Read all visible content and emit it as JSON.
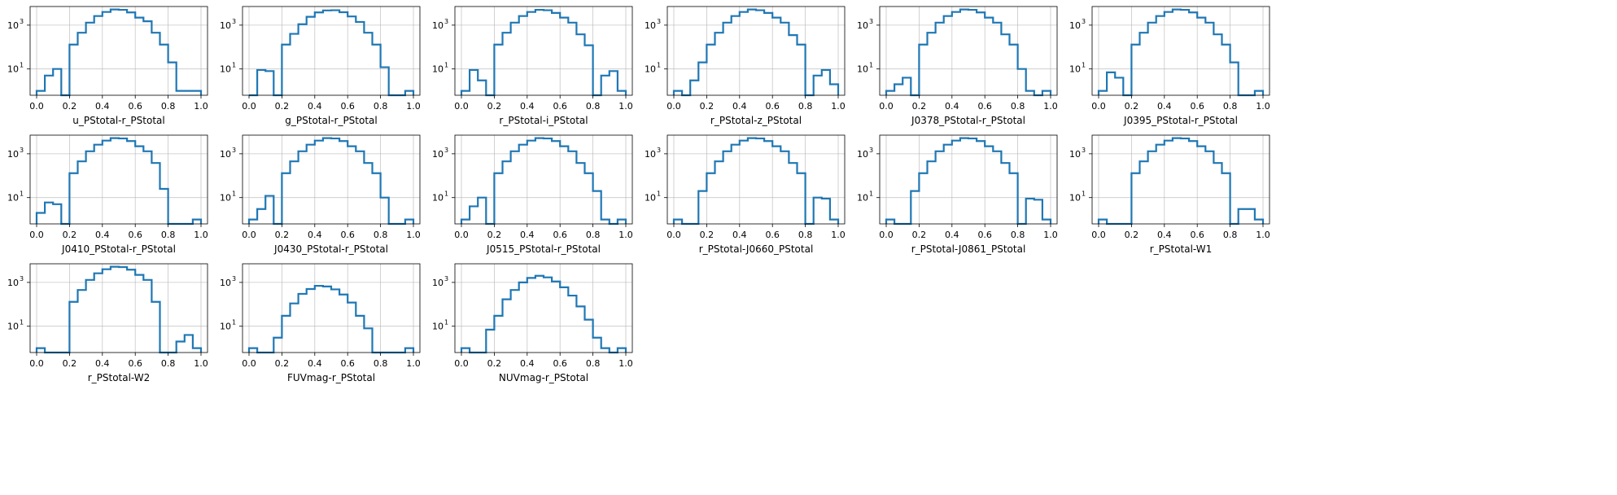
{
  "figure": {
    "layout": "3x6 grid of histograms, 15 panels shown",
    "line_color": "#1f77b4",
    "grid": true
  },
  "chart_data": [
    {
      "type": "histogram",
      "xlabel": "u_PStotal-r_PStotal",
      "yscale": "log",
      "xlim": [
        0,
        1
      ],
      "yticks": [
        "10^1",
        "10^3"
      ],
      "xticks": [
        "0.0",
        "0.2",
        "0.4",
        "0.6",
        "0.8",
        "1.0"
      ],
      "bin_edges": [
        0,
        0.05,
        0.1,
        0.15,
        0.2,
        0.25,
        0.3,
        0.35,
        0.4,
        0.45,
        0.5,
        0.55,
        0.6,
        0.65,
        0.7,
        0.75,
        0.8,
        0.85,
        0.9,
        0.95,
        1.0
      ],
      "counts": [
        1,
        5,
        10,
        0,
        130,
        450,
        1300,
        2600,
        4000,
        5200,
        5000,
        3800,
        2200,
        1500,
        450,
        130,
        20,
        1,
        1,
        1
      ]
    },
    {
      "type": "histogram",
      "xlabel": "g_PStotal-r_PStotal",
      "yscale": "log",
      "xlim": [
        0,
        1
      ],
      "yticks": [
        "10^1",
        "10^3"
      ],
      "xticks": [
        "0.0",
        "0.2",
        "0.4",
        "0.6",
        "0.8",
        "1.0"
      ],
      "bin_edges": [
        0,
        0.05,
        0.1,
        0.15,
        0.2,
        0.25,
        0.3,
        0.35,
        0.4,
        0.45,
        0.5,
        0.55,
        0.6,
        0.65,
        0.7,
        0.75,
        0.8,
        0.85,
        0.9,
        0.95,
        1.0
      ],
      "counts": [
        0,
        9,
        8,
        0,
        130,
        400,
        1100,
        2400,
        3800,
        4700,
        4800,
        3900,
        2500,
        1400,
        450,
        130,
        12,
        0,
        0,
        1
      ]
    },
    {
      "type": "histogram",
      "xlabel": "r_PStotal-i_PStotal",
      "yscale": "log",
      "xlim": [
        0,
        1
      ],
      "yticks": [
        "10^1",
        "10^3"
      ],
      "xticks": [
        "0.0",
        "0.2",
        "0.4",
        "0.6",
        "0.8",
        "1.0"
      ],
      "bin_edges": [
        0,
        0.05,
        0.1,
        0.15,
        0.2,
        0.25,
        0.3,
        0.35,
        0.4,
        0.45,
        0.5,
        0.55,
        0.6,
        0.65,
        0.7,
        0.75,
        0.8,
        0.85,
        0.9,
        0.95,
        1.0
      ],
      "counts": [
        1,
        9,
        3,
        0,
        130,
        450,
        1300,
        2600,
        4000,
        5000,
        4800,
        3600,
        2200,
        1300,
        380,
        120,
        0,
        5,
        8,
        1
      ]
    },
    {
      "type": "histogram",
      "xlabel": "r_PStotal-z_PStotal",
      "yscale": "log",
      "xlim": [
        0,
        1
      ],
      "yticks": [
        "10^1",
        "10^3"
      ],
      "xticks": [
        "0.0",
        "0.2",
        "0.4",
        "0.6",
        "0.8",
        "1.0"
      ],
      "bin_edges": [
        0,
        0.05,
        0.1,
        0.15,
        0.2,
        0.25,
        0.3,
        0.35,
        0.4,
        0.45,
        0.5,
        0.55,
        0.6,
        0.65,
        0.7,
        0.75,
        0.8,
        0.85,
        0.9,
        0.95,
        1.0
      ],
      "counts": [
        1,
        0,
        3,
        20,
        130,
        450,
        1300,
        2600,
        4000,
        5200,
        4800,
        3600,
        2200,
        1300,
        350,
        130,
        0,
        5,
        9,
        2
      ]
    },
    {
      "type": "histogram",
      "xlabel": "J0378_PStotal-r_PStotal",
      "yscale": "log",
      "xlim": [
        0,
        1
      ],
      "yticks": [
        "10^1",
        "10^3"
      ],
      "xticks": [
        "0.0",
        "0.2",
        "0.4",
        "0.6",
        "0.8",
        "1.0"
      ],
      "bin_edges": [
        0,
        0.05,
        0.1,
        0.15,
        0.2,
        0.25,
        0.3,
        0.35,
        0.4,
        0.45,
        0.5,
        0.55,
        0.6,
        0.65,
        0.7,
        0.75,
        0.8,
        0.85,
        0.9,
        0.95,
        1.0
      ],
      "counts": [
        1,
        2,
        4,
        0,
        130,
        450,
        1300,
        2600,
        4000,
        5200,
        5000,
        3800,
        2200,
        1300,
        380,
        130,
        10,
        1,
        0,
        1
      ]
    },
    {
      "type": "histogram",
      "xlabel": "J0395_PStotal-r_PStotal",
      "yscale": "log",
      "xlim": [
        0,
        1
      ],
      "yticks": [
        "10^1",
        "10^3"
      ],
      "xticks": [
        "0.0",
        "0.2",
        "0.4",
        "0.6",
        "0.8",
        "1.0"
      ],
      "bin_edges": [
        0,
        0.05,
        0.1,
        0.15,
        0.2,
        0.25,
        0.3,
        0.35,
        0.4,
        0.45,
        0.5,
        0.55,
        0.6,
        0.65,
        0.7,
        0.75,
        0.8,
        0.85,
        0.9,
        0.95,
        1.0
      ],
      "counts": [
        1,
        7,
        4,
        0,
        130,
        450,
        1300,
        2600,
        4000,
        5200,
        5000,
        3800,
        2200,
        1300,
        380,
        130,
        20,
        0,
        0,
        1
      ]
    },
    {
      "type": "histogram",
      "xlabel": "J0410_PStotal-r_PStotal",
      "yscale": "log",
      "xlim": [
        0,
        1
      ],
      "yticks": [
        "10^1",
        "10^3"
      ],
      "xticks": [
        "0.0",
        "0.2",
        "0.4",
        "0.6",
        "0.8",
        "1.0"
      ],
      "bin_edges": [
        0,
        0.05,
        0.1,
        0.15,
        0.2,
        0.25,
        0.3,
        0.35,
        0.4,
        0.45,
        0.5,
        0.55,
        0.6,
        0.65,
        0.7,
        0.75,
        0.8,
        0.85,
        0.9,
        0.95,
        1.0
      ],
      "counts": [
        2,
        6,
        5,
        0,
        130,
        450,
        1300,
        2600,
        4000,
        5200,
        5000,
        3800,
        2200,
        1300,
        380,
        25,
        0,
        0,
        0,
        1
      ]
    },
    {
      "type": "histogram",
      "xlabel": "J0430_PStotal-r_PStotal",
      "yscale": "log",
      "xlim": [
        0,
        1
      ],
      "yticks": [
        "10^1",
        "10^3"
      ],
      "xticks": [
        "0.0",
        "0.2",
        "0.4",
        "0.6",
        "0.8",
        "1.0"
      ],
      "bin_edges": [
        0,
        0.05,
        0.1,
        0.15,
        0.2,
        0.25,
        0.3,
        0.35,
        0.4,
        0.45,
        0.5,
        0.55,
        0.6,
        0.65,
        0.7,
        0.75,
        0.8,
        0.85,
        0.9,
        0.95,
        1.0
      ],
      "counts": [
        1,
        3,
        12,
        0,
        130,
        450,
        1300,
        2600,
        4000,
        5200,
        5000,
        3800,
        2200,
        1300,
        380,
        130,
        10,
        0,
        0,
        1
      ]
    },
    {
      "type": "histogram",
      "xlabel": "J0515_PStotal-r_PStotal",
      "yscale": "log",
      "xlim": [
        0,
        1
      ],
      "yticks": [
        "10^1",
        "10^3"
      ],
      "xticks": [
        "0.0",
        "0.2",
        "0.4",
        "0.6",
        "0.8",
        "1.0"
      ],
      "bin_edges": [
        0,
        0.05,
        0.1,
        0.15,
        0.2,
        0.25,
        0.3,
        0.35,
        0.4,
        0.45,
        0.5,
        0.55,
        0.6,
        0.65,
        0.7,
        0.75,
        0.8,
        0.85,
        0.9,
        0.95,
        1.0
      ],
      "counts": [
        1,
        4,
        10,
        0,
        130,
        450,
        1300,
        2600,
        4000,
        5200,
        5000,
        3800,
        2200,
        1300,
        380,
        130,
        20,
        1,
        0,
        1
      ]
    },
    {
      "type": "histogram",
      "xlabel": "r_PStotal-J0660_PStotal",
      "yscale": "log",
      "xlim": [
        0,
        1
      ],
      "yticks": [
        "10^1",
        "10^3"
      ],
      "xticks": [
        "0.0",
        "0.2",
        "0.4",
        "0.6",
        "0.8",
        "1.0"
      ],
      "bin_edges": [
        0,
        0.05,
        0.1,
        0.15,
        0.2,
        0.25,
        0.3,
        0.35,
        0.4,
        0.45,
        0.5,
        0.55,
        0.6,
        0.65,
        0.7,
        0.75,
        0.8,
        0.85,
        0.9,
        0.95,
        1.0
      ],
      "counts": [
        1,
        0,
        0,
        20,
        130,
        450,
        1300,
        2600,
        4000,
        5200,
        5000,
        3800,
        2200,
        1300,
        380,
        130,
        0,
        10,
        9,
        1
      ]
    },
    {
      "type": "histogram",
      "xlabel": "r_PStotal-J0861_PStotal",
      "yscale": "log",
      "xlim": [
        0,
        1
      ],
      "yticks": [
        "10^1",
        "10^3"
      ],
      "xticks": [
        "0.0",
        "0.2",
        "0.4",
        "0.6",
        "0.8",
        "1.0"
      ],
      "bin_edges": [
        0,
        0.05,
        0.1,
        0.15,
        0.2,
        0.25,
        0.3,
        0.35,
        0.4,
        0.45,
        0.5,
        0.55,
        0.6,
        0.65,
        0.7,
        0.75,
        0.8,
        0.85,
        0.9,
        0.95,
        1.0
      ],
      "counts": [
        1,
        0,
        0,
        20,
        130,
        450,
        1300,
        2600,
        4000,
        5200,
        5000,
        3800,
        2200,
        1300,
        380,
        130,
        0,
        9,
        8,
        1
      ]
    },
    {
      "type": "histogram",
      "xlabel": "r_PStotal-W1",
      "yscale": "log",
      "xlim": [
        0,
        1
      ],
      "yticks": [
        "10^1",
        "10^3"
      ],
      "xticks": [
        "0.0",
        "0.2",
        "0.4",
        "0.6",
        "0.8",
        "1.0"
      ],
      "bin_edges": [
        0,
        0.05,
        0.1,
        0.15,
        0.2,
        0.25,
        0.3,
        0.35,
        0.4,
        0.45,
        0.5,
        0.55,
        0.6,
        0.65,
        0.7,
        0.75,
        0.8,
        0.85,
        0.9,
        0.95,
        1.0
      ],
      "counts": [
        1,
        0,
        0,
        0,
        130,
        450,
        1300,
        2600,
        4000,
        5200,
        5000,
        3800,
        2200,
        1300,
        380,
        130,
        0,
        3,
        3,
        1
      ]
    },
    {
      "type": "histogram",
      "xlabel": "r_PStotal-W2",
      "yscale": "log",
      "xlim": [
        0,
        1
      ],
      "yticks": [
        "10^1",
        "10^3"
      ],
      "xticks": [
        "0.0",
        "0.2",
        "0.4",
        "0.6",
        "0.8",
        "1.0"
      ],
      "bin_edges": [
        0,
        0.05,
        0.1,
        0.15,
        0.2,
        0.25,
        0.3,
        0.35,
        0.4,
        0.45,
        0.5,
        0.55,
        0.6,
        0.65,
        0.7,
        0.75,
        0.8,
        0.85,
        0.9,
        0.95,
        1.0
      ],
      "counts": [
        1,
        0,
        0,
        0,
        130,
        450,
        1300,
        2600,
        4000,
        5200,
        5000,
        3800,
        2200,
        1300,
        130,
        0,
        0,
        2,
        4,
        1
      ]
    },
    {
      "type": "histogram",
      "xlabel": "FUVmag-r_PStotal",
      "yscale": "log",
      "xlim": [
        0,
        1
      ],
      "yticks": [
        "10^1",
        "10^3"
      ],
      "xticks": [
        "0.0",
        "0.2",
        "0.4",
        "0.6",
        "0.8",
        "1.0"
      ],
      "bin_edges": [
        0,
        0.05,
        0.1,
        0.15,
        0.2,
        0.25,
        0.3,
        0.35,
        0.4,
        0.45,
        0.5,
        0.55,
        0.6,
        0.65,
        0.7,
        0.75,
        0.8,
        0.85,
        0.9,
        0.95,
        1.0
      ],
      "counts": [
        1,
        0,
        0,
        3,
        30,
        110,
        300,
        500,
        700,
        650,
        480,
        280,
        120,
        30,
        8,
        0,
        0,
        0,
        0,
        1
      ]
    },
    {
      "type": "histogram",
      "xlabel": "NUVmag-r_PStotal",
      "yscale": "log",
      "xlim": [
        0,
        1
      ],
      "yticks": [
        "10^1",
        "10^3"
      ],
      "xticks": [
        "0.0",
        "0.2",
        "0.4",
        "0.6",
        "0.8",
        "1.0"
      ],
      "bin_edges": [
        0,
        0.05,
        0.1,
        0.15,
        0.2,
        0.25,
        0.3,
        0.35,
        0.4,
        0.45,
        0.5,
        0.55,
        0.6,
        0.65,
        0.7,
        0.75,
        0.8,
        0.85,
        0.9,
        0.95,
        1.0
      ],
      "counts": [
        1,
        0,
        0,
        7,
        30,
        170,
        450,
        1000,
        1600,
        2000,
        1700,
        1100,
        600,
        250,
        80,
        20,
        3,
        1,
        0,
        1
      ]
    }
  ]
}
